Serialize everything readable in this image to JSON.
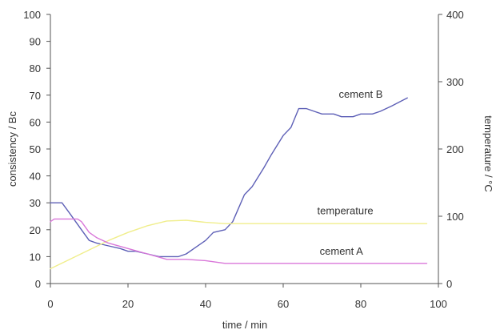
{
  "chart_data": {
    "type": "line",
    "xlabel": "time / min",
    "ylabel_left": "consistency / Bc",
    "ylabel_right": "temperature / °C",
    "xlim": [
      0,
      100
    ],
    "ylim_left": [
      0,
      100
    ],
    "ylim_right": [
      0,
      400
    ],
    "xticks": [
      "0",
      "20",
      "40",
      "60",
      "80",
      "100"
    ],
    "yticks_left": [
      "0",
      "10",
      "20",
      "30",
      "40",
      "50",
      "60",
      "70",
      "80",
      "90",
      "100"
    ],
    "yticks_right": [
      "0",
      "100",
      "200",
      "300",
      "400"
    ],
    "grid": false,
    "series": [
      {
        "name": "cement B",
        "axis": "left",
        "color": "#5d5fb6",
        "x": [
          0,
          3,
          5,
          8,
          10,
          12,
          15,
          18,
          20,
          22,
          25,
          28,
          30,
          33,
          35,
          37,
          40,
          42,
          45,
          47,
          50,
          52,
          55,
          57,
          60,
          62,
          64,
          66,
          68,
          70,
          73,
          75,
          78,
          80,
          83,
          85,
          88,
          92
        ],
        "y": [
          30,
          30,
          26,
          20,
          16,
          15,
          14,
          13,
          12,
          12,
          11,
          10,
          10,
          10,
          11,
          13,
          16,
          19,
          20,
          23,
          33,
          36,
          43,
          48,
          55,
          58,
          65,
          65,
          64,
          63,
          63,
          62,
          62,
          63,
          63,
          64,
          66,
          69
        ]
      },
      {
        "name": "temperature",
        "axis": "right",
        "color": "#f0ee8c",
        "x": [
          0,
          5,
          10,
          15,
          20,
          25,
          30,
          35,
          40,
          45,
          50,
          60,
          70,
          80,
          90,
          97
        ],
        "y": [
          22,
          36,
          50,
          64,
          76,
          86,
          93,
          94,
          91,
          89,
          89,
          89,
          89,
          89,
          89,
          89
        ]
      },
      {
        "name": "cement A",
        "axis": "left",
        "color": "#d977d9",
        "x": [
          0,
          1,
          2,
          4,
          7,
          8,
          10,
          12,
          15,
          20,
          25,
          30,
          35,
          40,
          45,
          50,
          60,
          70,
          80,
          90,
          97
        ],
        "y": [
          23,
          24,
          24,
          24,
          24,
          23,
          19,
          17,
          15,
          13,
          11,
          9,
          9,
          8.5,
          7.5,
          7.5,
          7.5,
          7.5,
          7.5,
          7.5,
          7.5
        ]
      }
    ],
    "annotations": [
      {
        "text": "cement B",
        "x": 80,
        "y_left": 69
      },
      {
        "text": "temperature",
        "x": 76,
        "y_left": 25.7
      },
      {
        "text": "cement A",
        "x": 75,
        "y_left": 10.7
      }
    ]
  }
}
